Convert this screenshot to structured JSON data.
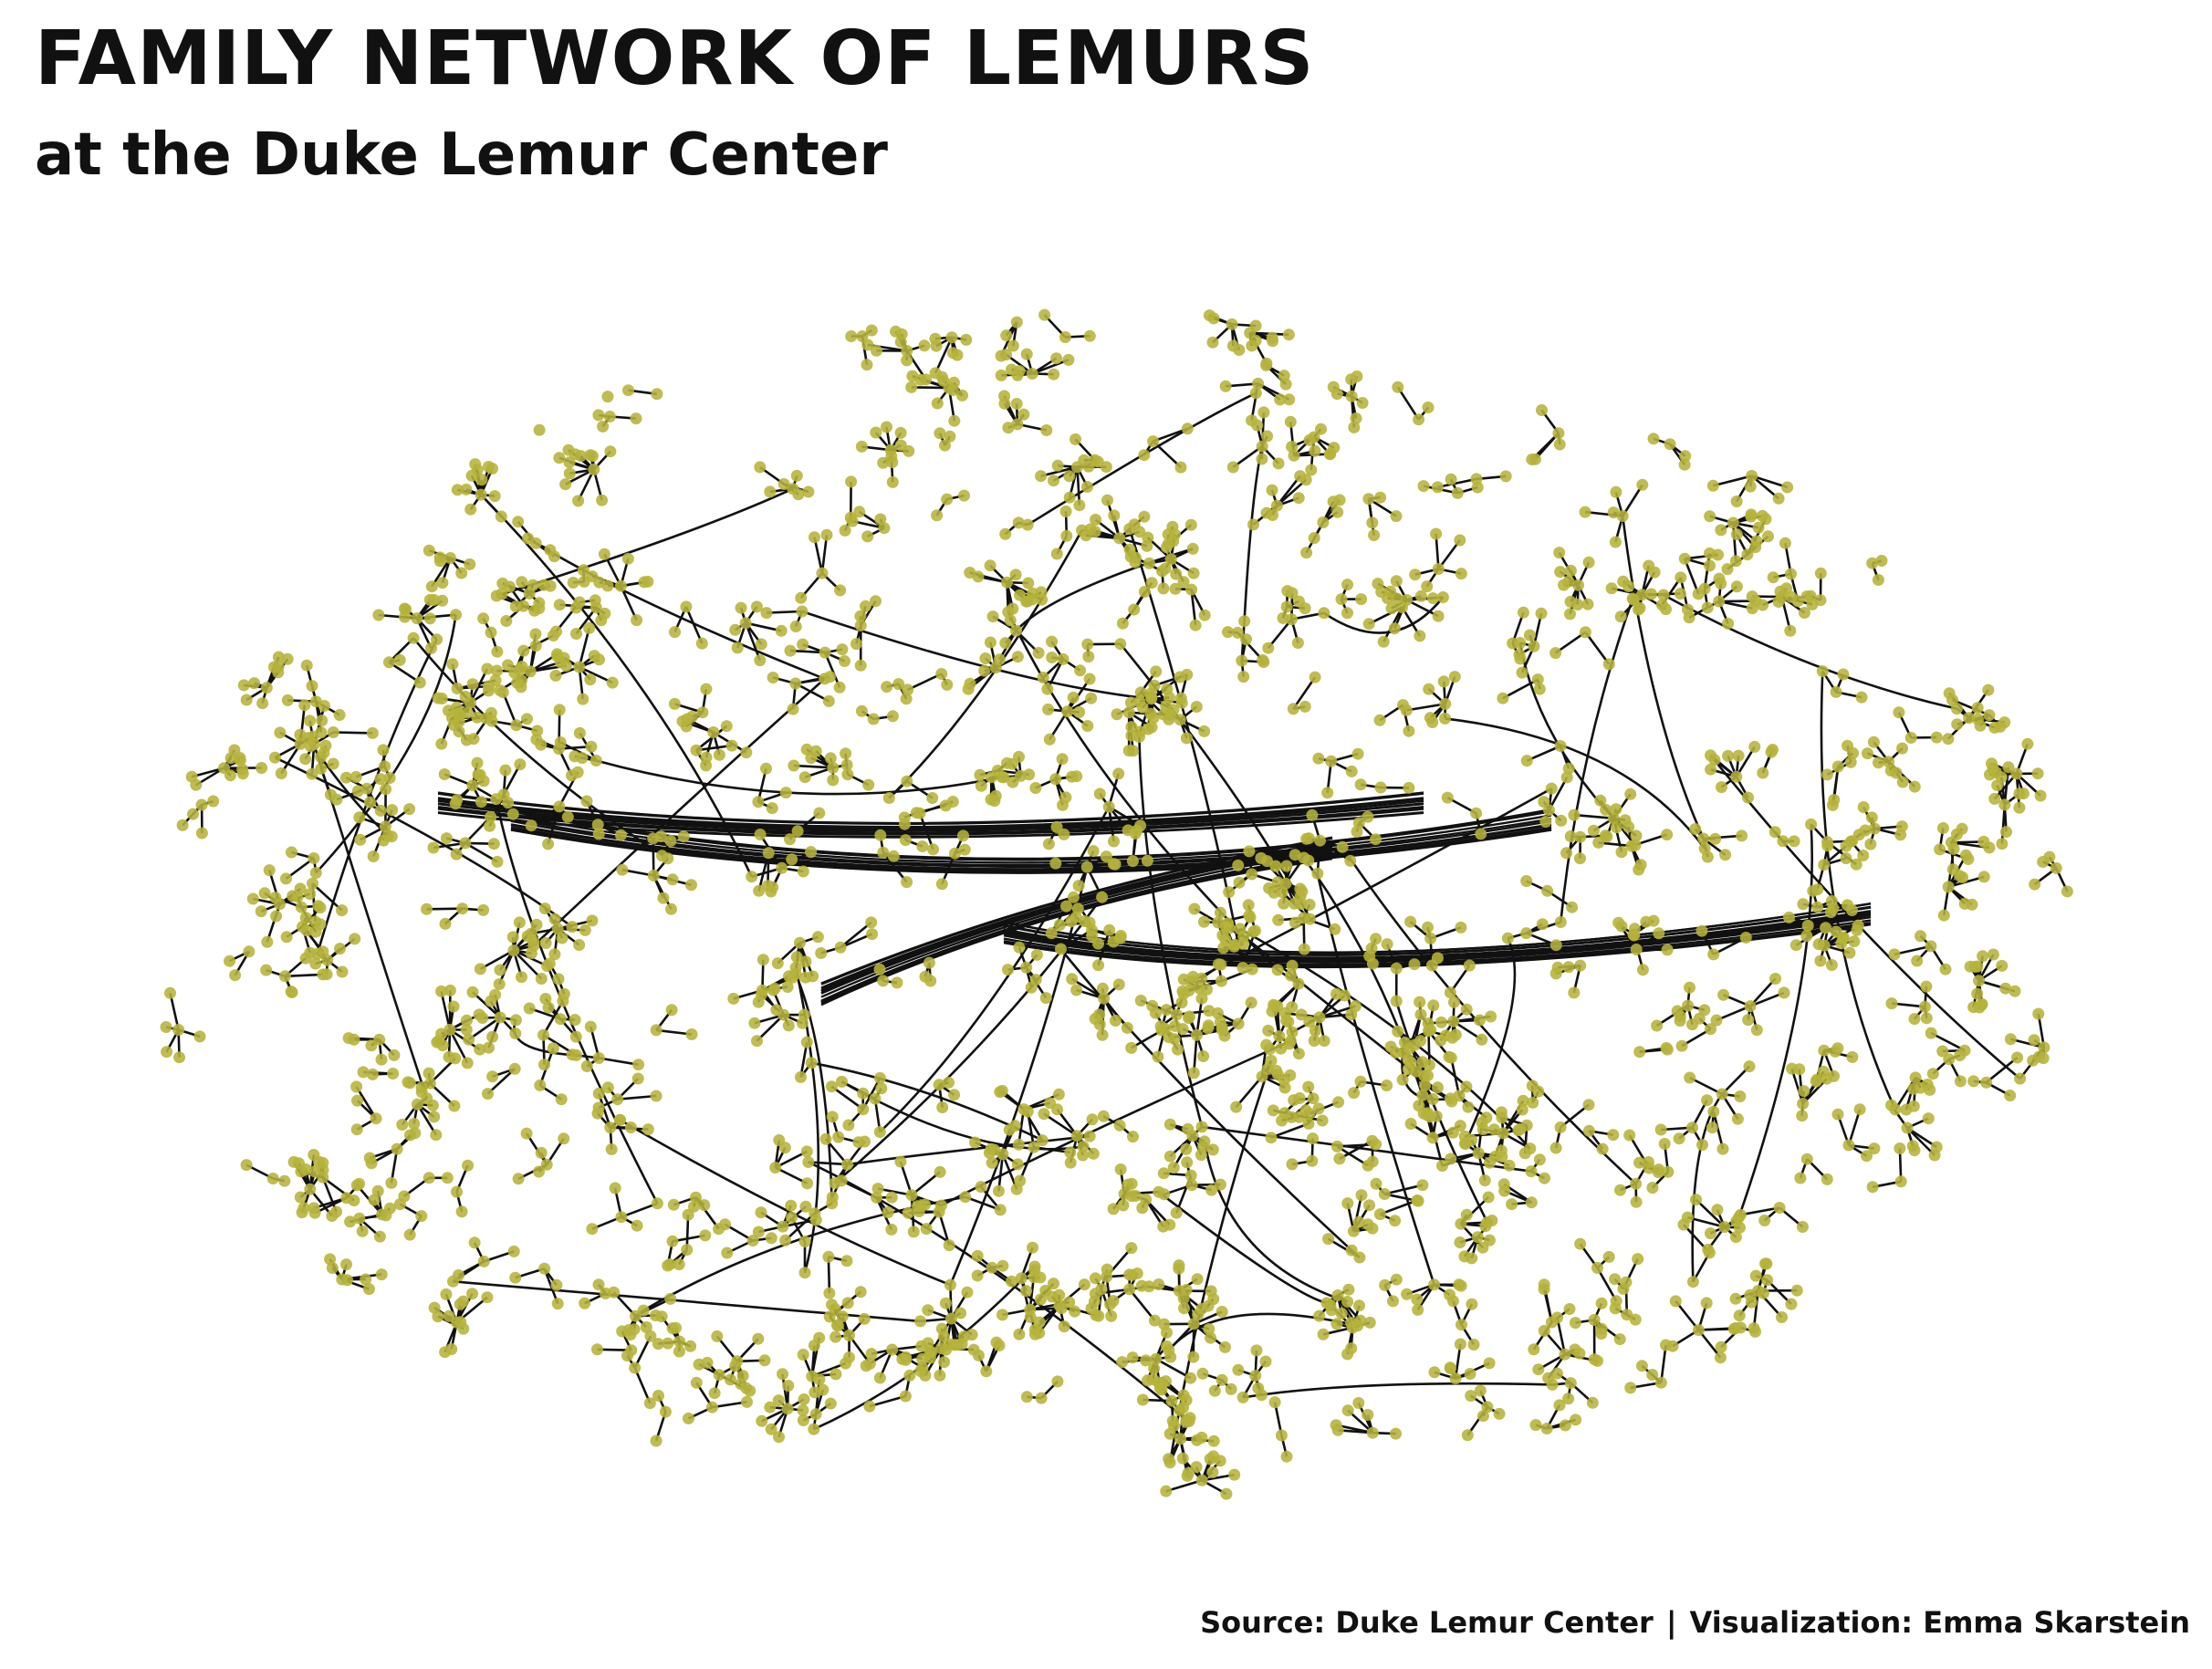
{
  "header": {
    "title": "FAMILY NETWORK OF LEMURS",
    "subtitle": "at the Duke Lemur Center"
  },
  "caption": {
    "source": "Source: Duke Lemur Center",
    "separator": "|",
    "credit": "Visualization: Emma Skarstein"
  },
  "colors": {
    "node": "#b5b33a",
    "edge": "#111111",
    "background": "#ffffff"
  }
}
